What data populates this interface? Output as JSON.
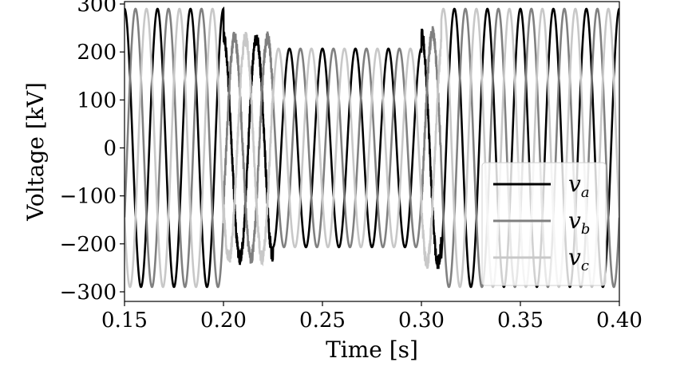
{
  "chart_data": {
    "type": "line",
    "xlabel": "Time [s]",
    "ylabel": "Voltage [kV]",
    "xlim": [
      0.15,
      0.4
    ],
    "ylim": [
      -320,
      305
    ],
    "xticks": [
      0.15,
      0.2,
      0.25,
      0.3,
      0.35,
      0.4
    ],
    "xtick_labels": [
      "0.15",
      "0.20",
      "0.25",
      "0.30",
      "0.35",
      "0.40"
    ],
    "yticks": [
      -300,
      -200,
      -100,
      0,
      100,
      200,
      300
    ],
    "ytick_labels": [
      "−300",
      "−200",
      "−100",
      "0",
      "100",
      "200",
      "300"
    ],
    "frequency_hz": 60,
    "grid": false,
    "legend_position": "lower-right",
    "segments": [
      {
        "t_start": 0.15,
        "t_end": 0.2,
        "amplitude_kv": 290
      },
      {
        "t_start": 0.2,
        "t_end": 0.225,
        "amplitude_kv": 230,
        "note": "transient"
      },
      {
        "t_start": 0.225,
        "t_end": 0.3,
        "amplitude_kv": 207
      },
      {
        "t_start": 0.3,
        "t_end": 0.31,
        "amplitude_kv": 240,
        "note": "transient"
      },
      {
        "t_start": 0.31,
        "t_end": 0.4,
        "amplitude_kv": 290
      }
    ],
    "series": [
      {
        "name": "v",
        "subscript": "a",
        "color": "#000000",
        "phase_deg": 0
      },
      {
        "name": "v",
        "subscript": "b",
        "color": "#808080",
        "phase_deg": -120
      },
      {
        "name": "v",
        "subscript": "c",
        "color": "#c8c8c8",
        "phase_deg": 120
      }
    ]
  }
}
